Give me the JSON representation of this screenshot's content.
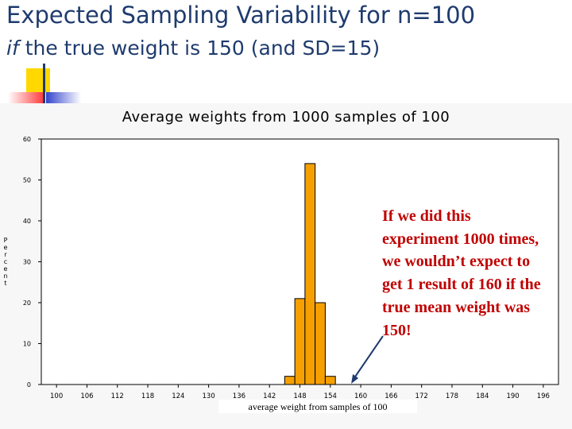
{
  "slide": {
    "title": "Expected Sampling Variability for n=100",
    "subtitle_italic": "if",
    "subtitle_rest": " the true weight is 150 (and SD=15)"
  },
  "annotation": {
    "text": "If we did this experiment 1000 times, we wouldn’t expect to get 1 result of 160 if the true mean weight was 150!"
  },
  "colors": {
    "bar_fill": "#f5a000",
    "bar_stroke": "#000000",
    "annotation": "#c00000",
    "arrow": "#1f3b6e",
    "title": "#1f3b6e"
  },
  "chart_data": {
    "type": "bar",
    "title": "Average weights from 1000 samples of 100",
    "xlabel": "average weight from samples of 100",
    "ylabel": "Percent",
    "x_ticks": [
      "100",
      "106",
      "112",
      "118",
      "124",
      "130",
      "136",
      "142",
      "148",
      "154",
      "160",
      "166",
      "172",
      "178",
      "184",
      "190",
      "196"
    ],
    "y_ticks": [
      "0",
      "10",
      "20",
      "30",
      "40",
      "50",
      "60"
    ],
    "ylim": [
      0,
      60
    ],
    "xlim": [
      97,
      199
    ],
    "bin_width": 2,
    "series": [
      {
        "bins": [
          {
            "center": 146,
            "value": 2
          },
          {
            "center": 148,
            "value": 21
          },
          {
            "center": 150,
            "value": 54
          },
          {
            "center": 152,
            "value": 20
          },
          {
            "center": 154,
            "value": 2
          }
        ]
      }
    ],
    "grid": false
  }
}
